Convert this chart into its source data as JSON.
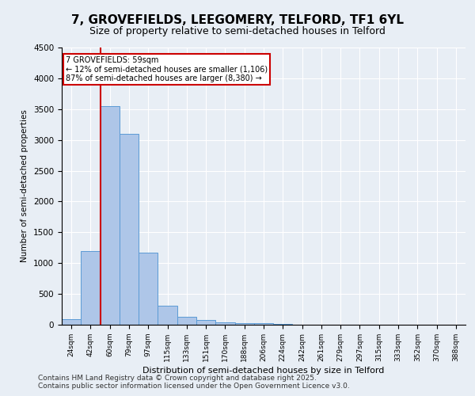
{
  "title_line1": "7, GROVEFIELDS, LEEGOMERY, TELFORD, TF1 6YL",
  "title_line2": "Size of property relative to semi-detached houses in Telford",
  "xlabel": "Distribution of semi-detached houses by size in Telford",
  "ylabel": "Number of semi-detached properties",
  "categories": [
    "24sqm",
    "42sqm",
    "60sqm",
    "79sqm",
    "97sqm",
    "115sqm",
    "133sqm",
    "151sqm",
    "170sqm",
    "188sqm",
    "206sqm",
    "224sqm",
    "242sqm",
    "261sqm",
    "279sqm",
    "297sqm",
    "315sqm",
    "333sqm",
    "352sqm",
    "370sqm",
    "388sqm"
  ],
  "values": [
    90,
    1200,
    3550,
    3100,
    1170,
    310,
    130,
    75,
    40,
    30,
    20,
    10,
    5,
    3,
    2,
    1,
    1,
    1,
    0,
    0,
    0
  ],
  "bar_color": "#aec6e8",
  "bar_edgecolor": "#5b9bd5",
  "vline_x": 1.5,
  "vline_color": "#cc0000",
  "annotation_title": "7 GROVEFIELDS: 59sqm",
  "annotation_line1": "← 12% of semi-detached houses are smaller (1,106)",
  "annotation_line2": "87% of semi-detached houses are larger (8,380) →",
  "annotation_box_color": "#cc0000",
  "ylim": [
    0,
    4500
  ],
  "yticks": [
    0,
    500,
    1000,
    1500,
    2000,
    2500,
    3000,
    3500,
    4000,
    4500
  ],
  "background_color": "#e8eef5",
  "plot_background": "#e8eef5",
  "footer_line1": "Contains HM Land Registry data © Crown copyright and database right 2025.",
  "footer_line2": "Contains public sector information licensed under the Open Government Licence v3.0.",
  "title_fontsize": 11,
  "subtitle_fontsize": 9,
  "footer_fontsize": 6.5
}
